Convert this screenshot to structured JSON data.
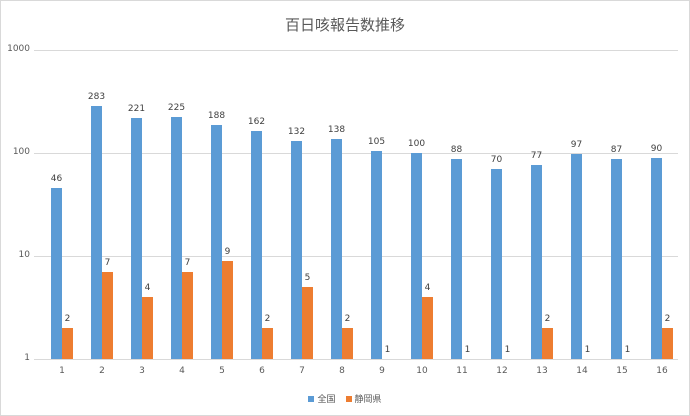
{
  "chart_data": {
    "type": "bar",
    "title": "百日咳報告数推移",
    "xlabel": "",
    "ylabel": "",
    "yscale": "log",
    "ylim": [
      1,
      1000
    ],
    "yticks": [
      "1",
      "10",
      "100",
      "1000"
    ],
    "categories": [
      "1",
      "2",
      "3",
      "4",
      "5",
      "6",
      "7",
      "8",
      "9",
      "10",
      "11",
      "12",
      "13",
      "14",
      "15",
      "16"
    ],
    "series": [
      {
        "name": "全国",
        "color": "#5b9bd5",
        "values": [
          46,
          283,
          221,
          225,
          188,
          162,
          132,
          138,
          105,
          100,
          88,
          70,
          77,
          97,
          87,
          90
        ]
      },
      {
        "name": "静岡県",
        "color": "#ed7d31",
        "values": [
          2,
          7,
          4,
          7,
          9,
          2,
          5,
          2,
          1,
          4,
          1,
          1,
          2,
          1,
          1,
          2
        ]
      }
    ],
    "legend_position": "bottom",
    "grid": true,
    "data_labels": true
  }
}
